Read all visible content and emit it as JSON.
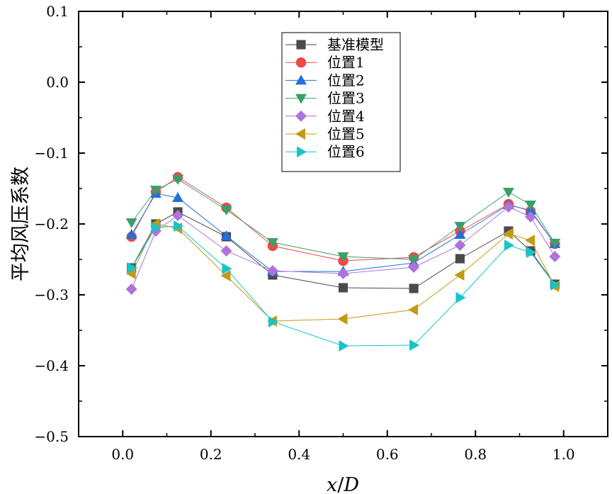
{
  "chart_data": {
    "type": "line",
    "title": "",
    "xlabel": "x/D",
    "xlabel_parts": {
      "var1": "x",
      "sep": "/",
      "var2": "D"
    },
    "ylabel": "平均风压系数",
    "xlim": [
      -0.1,
      1.1
    ],
    "ylim": [
      -0.5,
      0.1
    ],
    "xticks": [
      0.0,
      0.2,
      0.4,
      0.6,
      0.8,
      1.0
    ],
    "xtick_labels": [
      "0.0",
      "0.2",
      "0.4",
      "0.6",
      "0.8",
      "1.0"
    ],
    "yticks": [
      -0.5,
      -0.4,
      -0.3,
      -0.2,
      -0.1,
      0.0,
      0.1
    ],
    "ytick_labels": [
      "−0.5",
      "−0.4",
      "−0.3",
      "−0.2",
      "−0.1",
      "0.0",
      "0.1"
    ],
    "grid": false,
    "legend_position": "top-center",
    "x": [
      0.02,
      0.075,
      0.125,
      0.235,
      0.34,
      0.5,
      0.66,
      0.765,
      0.875,
      0.925,
      0.98
    ],
    "series": [
      {
        "name": "基准模型",
        "color": "#4a4a4a",
        "marker": "square",
        "values": [
          -0.262,
          -0.2,
          -0.183,
          -0.218,
          -0.272,
          -0.29,
          -0.291,
          -0.249,
          -0.21,
          -0.238,
          -0.285
        ]
      },
      {
        "name": "位置1",
        "color": "#ef4848",
        "marker": "circle",
        "values": [
          -0.218,
          -0.155,
          -0.134,
          -0.177,
          -0.231,
          -0.252,
          -0.247,
          -0.21,
          -0.172,
          -0.182,
          -0.228
        ]
      },
      {
        "name": "位置2",
        "color": "#2270d8",
        "marker": "triangle-up",
        "values": [
          -0.215,
          -0.157,
          -0.163,
          -0.217,
          -0.267,
          -0.267,
          -0.255,
          -0.215,
          -0.173,
          -0.181,
          -0.228
        ]
      },
      {
        "name": "位置3",
        "color": "#3aa068",
        "marker": "triangle-down",
        "values": [
          -0.198,
          -0.152,
          -0.137,
          -0.18,
          -0.226,
          -0.246,
          -0.25,
          -0.203,
          -0.155,
          -0.173,
          -0.227
        ]
      },
      {
        "name": "位置4",
        "color": "#ae73dc",
        "marker": "diamond",
        "values": [
          -0.292,
          -0.21,
          -0.188,
          -0.238,
          -0.266,
          -0.27,
          -0.261,
          -0.23,
          -0.176,
          -0.19,
          -0.246
        ]
      },
      {
        "name": "位置5",
        "color": "#c49a14",
        "marker": "triangle-left",
        "values": [
          -0.27,
          -0.2,
          -0.206,
          -0.273,
          -0.337,
          -0.334,
          -0.321,
          -0.272,
          -0.214,
          -0.223,
          -0.288
        ]
      },
      {
        "name": "位置6",
        "color": "#18c4c8",
        "marker": "triangle-right",
        "values": [
          -0.262,
          -0.205,
          -0.203,
          -0.263,
          -0.338,
          -0.372,
          -0.371,
          -0.304,
          -0.23,
          -0.24,
          -0.286
        ]
      }
    ]
  }
}
